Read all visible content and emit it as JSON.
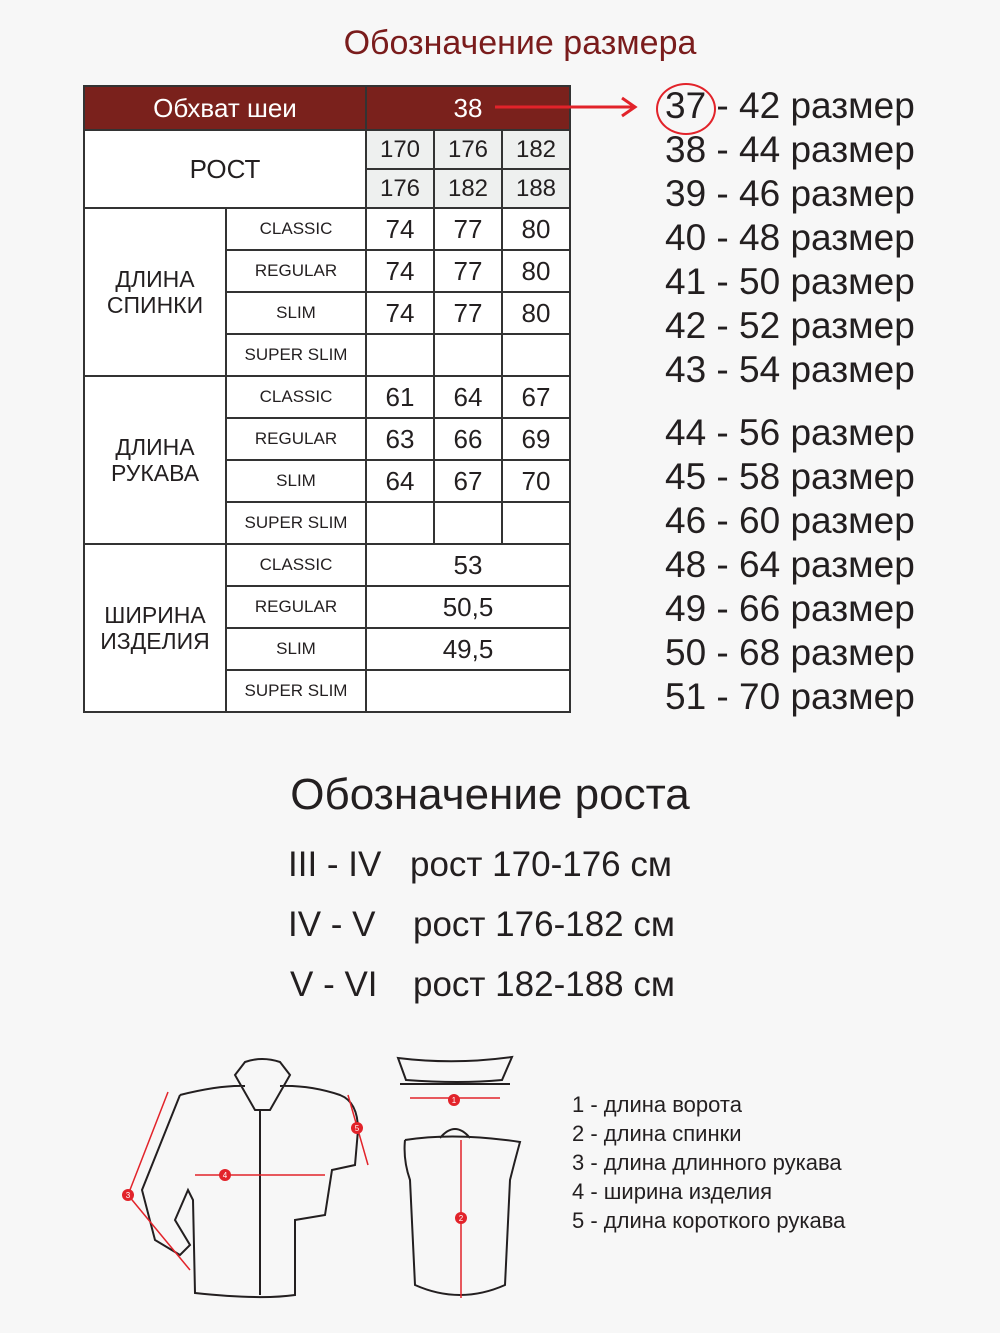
{
  "title": "Обозначение размера",
  "table": {
    "neck_label": "Обхват шеи",
    "neck_value": "38",
    "height_label": "РОСТ",
    "height_from": [
      "170",
      "176",
      "182"
    ],
    "height_to": [
      "176",
      "182",
      "188"
    ],
    "groups": [
      {
        "label": "ДЛИНА\nСПИНКИ",
        "rows": [
          [
            "CLASSIC",
            "74",
            "77",
            "80"
          ],
          [
            "REGULAR",
            "74",
            "77",
            "80"
          ],
          [
            "SLIM",
            "74",
            "77",
            "80"
          ],
          [
            "SUPER SLIM",
            "",
            "",
            ""
          ]
        ]
      },
      {
        "label": "ДЛИНА\nРУКАВА",
        "rows": [
          [
            "CLASSIC",
            "61",
            "64",
            "67"
          ],
          [
            "REGULAR",
            "63",
            "66",
            "69"
          ],
          [
            "SLIM",
            "64",
            "67",
            "70"
          ],
          [
            "SUPER SLIM",
            "",
            "",
            ""
          ]
        ]
      },
      {
        "label": "ШИРИНА\nИЗДЕЛИЯ",
        "merged": true,
        "rows": [
          [
            "CLASSIC",
            "53"
          ],
          [
            "REGULAR",
            "50,5"
          ],
          [
            "SLIM",
            "49,5"
          ],
          [
            "SUPER SLIM",
            ""
          ]
        ]
      }
    ]
  },
  "sizes": [
    "37 - 42 размер",
    "38 - 44 размер",
    "39 - 46 размер",
    "40 - 48 размер",
    "41 - 50 размер",
    "42 - 52 размер",
    "43 - 54 размер",
    "44 - 56 размер",
    "45 - 58 размер",
    "46 - 60 размер",
    "48 - 64 размер",
    "49 - 66 размер",
    "50 - 68 размер",
    "51 - 70 размер"
  ],
  "accent_color": "#e2232a",
  "header_color": "#7a211c",
  "height_title": "Обозначение роста",
  "height_rows": [
    [
      "III - IV",
      "рост 170-176 см"
    ],
    [
      "IV - V",
      "рост 176-182 см"
    ],
    [
      "V - VI",
      "рост 182-188 см"
    ]
  ],
  "markers": [
    "1",
    "2",
    "3",
    "4",
    "5"
  ],
  "legend": [
    "1 - длина ворота",
    "2 - длина спинки",
    "3 - длина длинного рукава",
    "4 - ширина изделия",
    "5 - длина короткого рукава"
  ]
}
